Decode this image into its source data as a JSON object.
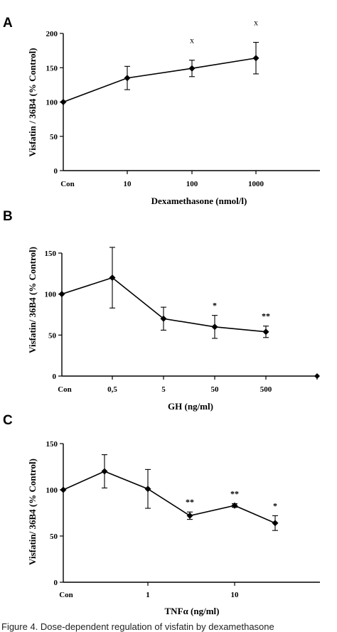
{
  "chart_data": [
    {
      "panel": "A",
      "type": "line",
      "xlabel": "Dexamethasone (nmol/l)",
      "ylabel": "Visfatin / 36B4 (% Control)",
      "ylim": [
        0,
        200
      ],
      "yticks": [
        0,
        50,
        100,
        150,
        200
      ],
      "categories": [
        "Con",
        "10",
        "100",
        "1000"
      ],
      "values": [
        100,
        135,
        149,
        164
      ],
      "error": [
        0,
        17,
        12,
        23
      ],
      "annotations": [
        "",
        "",
        "x",
        "x"
      ]
    },
    {
      "panel": "B",
      "type": "line",
      "xlabel": "GH (ng/ml)",
      "ylabel": "Visfatin/ 36B4 (% Control)",
      "ylim": [
        0,
        150
      ],
      "yticks": [
        0,
        50,
        100,
        150
      ],
      "categories": [
        "Con",
        "0,5",
        "5",
        "50",
        "500"
      ],
      "values": [
        100,
        120,
        70,
        60,
        54
      ],
      "error": [
        0,
        37,
        14,
        14,
        7
      ],
      "annotations": [
        "",
        "",
        "",
        "*",
        "**"
      ]
    },
    {
      "panel": "C",
      "type": "line",
      "xlabel": "TNFα (ng/ml)",
      "ylabel": "Visfatin/ 36B4 (% Control)",
      "ylim": [
        0,
        150
      ],
      "yticks": [
        0,
        50,
        100,
        150
      ],
      "categories": [
        "Con",
        "",
        "1",
        "",
        "10",
        ""
      ],
      "values": [
        100,
        120,
        101,
        72,
        83,
        64
      ],
      "error": [
        0,
        18,
        21,
        4,
        2,
        8
      ],
      "annotations": [
        "",
        "",
        "",
        "**",
        "**",
        "*"
      ]
    }
  ],
  "caption": "Figure 4. Dose-dependent regulation of visfatin by dexamethasone"
}
